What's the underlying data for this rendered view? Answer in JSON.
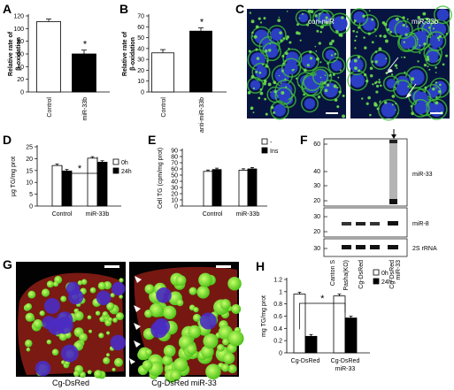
{
  "panels": {
    "A": "A",
    "B": "B",
    "C": "C",
    "D": "D",
    "E": "E",
    "F": "F",
    "G": "G",
    "H": "H"
  },
  "chart_data": [
    {
      "panel": "A",
      "type": "bar",
      "categories": [
        "Control",
        "miR-33b"
      ],
      "values": [
        111,
        60
      ],
      "errors": [
        4,
        6
      ],
      "ylabel": "Relative rate of β-oxidation",
      "ylim": [
        0,
        120
      ],
      "yticks": [
        "0",
        "20",
        "40",
        "60",
        "80",
        "100",
        "120"
      ],
      "sig": "*"
    },
    {
      "panel": "B",
      "type": "bar",
      "categories": [
        "Control",
        "anti-miR-33b"
      ],
      "values": [
        36,
        56
      ],
      "errors": [
        3,
        3
      ],
      "ylabel": "Relative rate of β-oxidation",
      "ylim": [
        0,
        70
      ],
      "yticks": [
        "0",
        "10",
        "20",
        "30",
        "40",
        "50",
        "60",
        "70"
      ],
      "sig": "*"
    },
    {
      "panel": "D",
      "type": "bar",
      "categories": [
        "Control",
        "miR-33b"
      ],
      "series": [
        {
          "name": "0h",
          "values": [
            17.1,
            20.2
          ]
        },
        {
          "name": "24h",
          "values": [
            14.8,
            18.5
          ]
        }
      ],
      "ylabel": "µg TG/mg prot",
      "ylim": [
        0,
        25
      ],
      "yticks": [
        "0",
        "5",
        "10",
        "15",
        "20",
        "25"
      ],
      "sig": "*"
    },
    {
      "panel": "E",
      "type": "bar",
      "categories": [
        "Control",
        "miR-33b"
      ],
      "series": [
        {
          "name": "-",
          "values": [
            56,
            58
          ]
        },
        {
          "name": "Ins",
          "values": [
            59,
            60
          ]
        }
      ],
      "ylabel": "Cell TG (cpm/mg prot)",
      "ylim": [
        0,
        90
      ],
      "yticks": [
        "0",
        "10",
        "20",
        "30",
        "40",
        "50",
        "60",
        "70",
        "80",
        "90"
      ]
    },
    {
      "panel": "H",
      "type": "bar",
      "categories": [
        "Cg-DsRed",
        "Cg-DsRed miR-33"
      ],
      "series": [
        {
          "name": "0h",
          "values": [
            0.96,
            0.93
          ]
        },
        {
          "name": "24h",
          "values": [
            0.27,
            0.57
          ]
        }
      ],
      "ylabel": "mg TG/mg prot",
      "ylim": [
        0,
        1.2
      ],
      "yticks": [
        "0",
        "0.2",
        "0.4",
        "0.6",
        "0.8",
        "1",
        "1.2"
      ],
      "sig": "*"
    }
  ],
  "panelC": {
    "left_label": "con-miR",
    "right_label": "miR-33b"
  },
  "panelF": {
    "markers": [
      "60",
      "40",
      "30",
      "20",
      "30",
      "20",
      "30"
    ],
    "band_labels": [
      "miR-33",
      "miR-8",
      "2S rRNA"
    ],
    "lanes": [
      "Canton S",
      "Pasha(KO)",
      "Cg-DsRed",
      "Cg-DsRed miR-33"
    ]
  },
  "panelG": {
    "left_caption": "Cg-DsRed",
    "right_caption": "Cg-DsRed miR-33"
  }
}
